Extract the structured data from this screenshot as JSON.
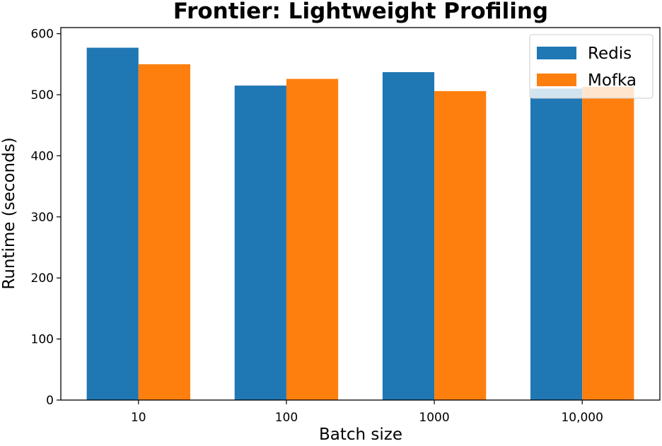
{
  "chart_data": {
    "type": "bar",
    "title": "Frontier: Lightweight Profiling",
    "xlabel": "Batch size",
    "ylabel": "Runtime (seconds)",
    "categories": [
      "10",
      "100",
      "1000",
      "10,000"
    ],
    "series": [
      {
        "name": "Redis",
        "color": "#1f77b4",
        "values": [
          577,
          515,
          537,
          510
        ]
      },
      {
        "name": "Mofka",
        "color": "#ff7f0e",
        "values": [
          550,
          526,
          506,
          513
        ]
      }
    ],
    "ylim": [
      0,
      610
    ],
    "yticks": [
      0,
      100,
      200,
      300,
      400,
      500,
      600
    ],
    "grid": false,
    "legend_position": "top-right"
  }
}
